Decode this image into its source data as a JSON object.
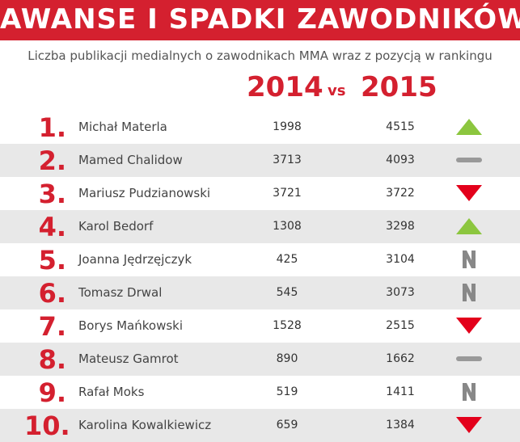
{
  "header": {
    "title": "AWANSE I SPADKI ZAWODNIKÓW",
    "subtitle": "Liczba publikacji medialnych o zawodnikach MMA wraz z pozycją w rankingu",
    "year_a": "2014",
    "vs": "vs",
    "year_b": "2015"
  },
  "table": {
    "rows": [
      [
        "1.",
        "Michał Materla",
        "1998",
        "4515"
      ],
      [
        "2.",
        "Mamed Chalidow",
        "3713",
        "4093"
      ],
      [
        "3.",
        "Mariusz Pudzianowski",
        "3721",
        "3722"
      ],
      [
        "4.",
        "Karol Bedorf",
        "1308",
        "3298"
      ],
      [
        "5.",
        "Joanna Jędrzęjczyk",
        "425",
        "3104"
      ],
      [
        "6.",
        "Tomasz Drwal",
        "545",
        "3073"
      ],
      [
        "7.",
        "Borys Mańkowski",
        "1528",
        "2515"
      ],
      [
        "8.",
        "Mateusz Gamrot",
        "890",
        "1662"
      ],
      [
        "9.",
        "Rafał Moks",
        "519",
        "1411"
      ],
      [
        "10.",
        "Karolina Kowalkiewicz",
        "659",
        "1384"
      ]
    ]
  }
}
